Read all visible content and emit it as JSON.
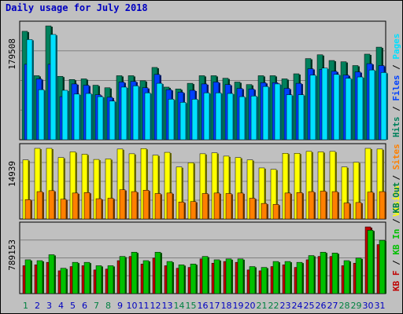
{
  "title": "Daily usage for July 2018",
  "colors": {
    "hits": "#00805c",
    "files": "#0040ff",
    "pages": "#00e0ff",
    "visits": "#ffff00",
    "sites": "#ff8000",
    "kb_f": "#c00000",
    "kb_in": "#00c000",
    "kb_out": "#008040",
    "day_black": "#0000c0",
    "day_green": "#008040"
  },
  "chart_data": [
    {
      "type": "bar",
      "panel": "top",
      "ymax_label": "179508",
      "ylim": [
        0,
        179508
      ],
      "legend": [
        {
          "text": "Hits",
          "color_key": "hits"
        },
        {
          "text": "/",
          "color_key": "sep"
        },
        {
          "text": "Files",
          "color_key": "files"
        },
        {
          "text": "/",
          "color_key": "sep"
        },
        {
          "text": "Pages",
          "color_key": "pages"
        }
      ],
      "categories": [
        "1",
        "2",
        "3",
        "4",
        "5",
        "6",
        "7",
        "8",
        "9",
        "10",
        "11",
        "12",
        "13",
        "14",
        "15",
        "16",
        "17",
        "18",
        "19",
        "20",
        "21",
        "22",
        "23",
        "24",
        "25",
        "26",
        "27",
        "28",
        "29",
        "30",
        "31"
      ],
      "series": [
        {
          "name": "Hits",
          "values": [
            171000,
            101000,
            179508,
            100000,
            95000,
            96000,
            86000,
            82000,
            101000,
            101000,
            93000,
            114000,
            83000,
            80000,
            89000,
            101000,
            101000,
            97000,
            91000,
            87000,
            101000,
            101000,
            96000,
            104000,
            128000,
            134000,
            125000,
            123000,
            117000,
            135000,
            146000
          ]
        },
        {
          "name": "Files",
          "values": [
            119000,
            96000,
            119000,
            68000,
            88000,
            86000,
            71000,
            67000,
            91000,
            92000,
            82000,
            103000,
            79000,
            75000,
            78000,
            88000,
            91000,
            87000,
            81000,
            80000,
            90000,
            90000,
            81000,
            89000,
            112000,
            111000,
            108000,
            102000,
            107000,
            120000,
            117000
          ]
        },
        {
          "name": "Pages",
          "values": [
            158000,
            79000,
            166000,
            78000,
            72000,
            73000,
            68000,
            61000,
            83000,
            85000,
            74000,
            89000,
            64000,
            59000,
            64000,
            74000,
            74000,
            73000,
            68000,
            69000,
            84000,
            88000,
            71000,
            71000,
            102000,
            113000,
            103000,
            97000,
            99000,
            110000,
            106000
          ]
        }
      ]
    },
    {
      "type": "bar",
      "panel": "middle",
      "ymax_label": "14939",
      "ylim": [
        0,
        14939
      ],
      "legend": [
        {
          "text": "Visits",
          "color_key": "visits"
        },
        {
          "text": "/",
          "color_key": "sep"
        },
        {
          "text": "Sites",
          "color_key": "sites"
        }
      ],
      "categories": [
        "1",
        "2",
        "3",
        "4",
        "5",
        "6",
        "7",
        "8",
        "9",
        "10",
        "11",
        "12",
        "13",
        "14",
        "15",
        "16",
        "17",
        "18",
        "19",
        "20",
        "21",
        "22",
        "23",
        "24",
        "25",
        "26",
        "27",
        "28",
        "29",
        "30",
        "31"
      ],
      "series": [
        {
          "name": "Visits",
          "values": [
            12500,
            14939,
            14939,
            13000,
            14200,
            13700,
            12600,
            12700,
            14800,
            13800,
            14900,
            13500,
            14100,
            11000,
            11900,
            13800,
            14000,
            13300,
            13000,
            12500,
            10800,
            10500,
            13900,
            13900,
            14300,
            14200,
            14300,
            11000,
            12000,
            14939,
            14800
          ]
        },
        {
          "name": "Sites",
          "values": [
            4100,
            5800,
            6000,
            4200,
            5500,
            5600,
            4300,
            4400,
            6200,
            5800,
            6100,
            5400,
            5500,
            3600,
            3700,
            5400,
            5500,
            5400,
            5500,
            4400,
            3300,
            3100,
            5500,
            5600,
            5800,
            5900,
            5800,
            3400,
            3500,
            5700,
            5800
          ]
        }
      ]
    },
    {
      "type": "bar",
      "panel": "bottom",
      "ymax_label": "789153",
      "ylim": [
        0,
        789153
      ],
      "legend": [
        {
          "text": "KB F",
          "color_key": "kb_f"
        },
        {
          "text": "/",
          "color_key": "sep"
        },
        {
          "text": "KB In",
          "color_key": "kb_in"
        },
        {
          "text": "/",
          "color_key": "sep"
        },
        {
          "text": "KB Out",
          "color_key": "kb_out"
        }
      ],
      "categories": [
        "1",
        "2",
        "3",
        "4",
        "5",
        "6",
        "7",
        "8",
        "9",
        "10",
        "11",
        "12",
        "13",
        "14",
        "15",
        "16",
        "17",
        "18",
        "19",
        "20",
        "21",
        "22",
        "23",
        "24",
        "25",
        "26",
        "27",
        "28",
        "29",
        "30",
        "31"
      ],
      "series": [
        {
          "name": "KB F",
          "values": [
            330000,
            340000,
            370000,
            270000,
            320000,
            330000,
            280000,
            290000,
            390000,
            440000,
            350000,
            420000,
            330000,
            300000,
            310000,
            410000,
            360000,
            380000,
            370000,
            280000,
            270000,
            320000,
            340000,
            310000,
            400000,
            440000,
            440000,
            330000,
            360000,
            789153,
            580000
          ]
        },
        {
          "name": "KB In",
          "values": [
            400000,
            390000,
            460000,
            300000,
            370000,
            370000,
            330000,
            330000,
            440000,
            490000,
            390000,
            490000,
            380000,
            340000,
            350000,
            440000,
            400000,
            410000,
            410000,
            320000,
            310000,
            380000,
            380000,
            370000,
            450000,
            490000,
            480000,
            390000,
            420000,
            750000,
            630000
          ]
        }
      ]
    }
  ],
  "days": [
    {
      "label": "1",
      "color_key": "day_green"
    },
    {
      "label": "2",
      "color_key": "day_black"
    },
    {
      "label": "3",
      "color_key": "day_black"
    },
    {
      "label": "4",
      "color_key": "day_black"
    },
    {
      "label": "5",
      "color_key": "day_black"
    },
    {
      "label": "6",
      "color_key": "day_black"
    },
    {
      "label": "7",
      "color_key": "day_green"
    },
    {
      "label": "8",
      "color_key": "day_green"
    },
    {
      "label": "9",
      "color_key": "day_black"
    },
    {
      "label": "10",
      "color_key": "day_black"
    },
    {
      "label": "11",
      "color_key": "day_black"
    },
    {
      "label": "12",
      "color_key": "day_black"
    },
    {
      "label": "13",
      "color_key": "day_black"
    },
    {
      "label": "14",
      "color_key": "day_green"
    },
    {
      "label": "15",
      "color_key": "day_green"
    },
    {
      "label": "16",
      "color_key": "day_black"
    },
    {
      "label": "17",
      "color_key": "day_black"
    },
    {
      "label": "18",
      "color_key": "day_black"
    },
    {
      "label": "19",
      "color_key": "day_black"
    },
    {
      "label": "20",
      "color_key": "day_black"
    },
    {
      "label": "21",
      "color_key": "day_green"
    },
    {
      "label": "22",
      "color_key": "day_green"
    },
    {
      "label": "23",
      "color_key": "day_black"
    },
    {
      "label": "24",
      "color_key": "day_black"
    },
    {
      "label": "25",
      "color_key": "day_black"
    },
    {
      "label": "26",
      "color_key": "day_black"
    },
    {
      "label": "27",
      "color_key": "day_black"
    },
    {
      "label": "28",
      "color_key": "day_green"
    },
    {
      "label": "29",
      "color_key": "day_green"
    },
    {
      "label": "30",
      "color_key": "day_black"
    },
    {
      "label": "31",
      "color_key": "day_black"
    }
  ]
}
